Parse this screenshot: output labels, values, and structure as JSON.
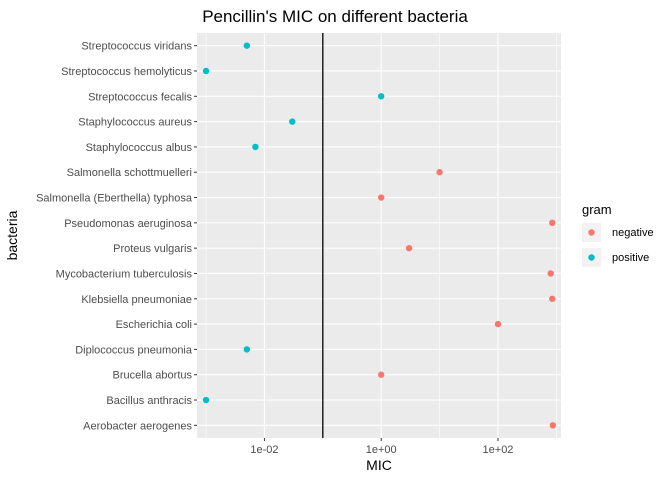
{
  "chart_data": {
    "type": "scatter",
    "title": "Pencillin's MIC on different bacteria",
    "xlabel": "MIC",
    "ylabel": "bacteria",
    "x_scale": "log10",
    "xlim": [
      0.0007,
      1200
    ],
    "x_ticks": [
      {
        "value": 0.01,
        "label": "1e-02"
      },
      {
        "value": 1,
        "label": "1e+00"
      },
      {
        "value": 100,
        "label": "1e+02"
      }
    ],
    "reference_line_x": 0.1,
    "grid": true,
    "legend": {
      "title": "gram",
      "placement": "right",
      "entries": [
        {
          "label": "negative",
          "color": "#f8766d"
        },
        {
          "label": "positive",
          "color": "#00bfc4"
        }
      ]
    },
    "categories": [
      "Aerobacter aerogenes",
      "Bacillus anthracis",
      "Brucella abortus",
      "Diplococcus pneumonia",
      "Escherichia coli",
      "Klebsiella pneumoniae",
      "Mycobacterium tuberculosis",
      "Proteus vulgaris",
      "Pseudomonas aeruginosa",
      "Salmonella (Eberthella) typhosa",
      "Salmonella schottmuelleri",
      "Staphylococcus albus",
      "Staphylococcus aureus",
      "Streptococcus fecalis",
      "Streptococcus hemolyticus",
      "Streptococcus viridans"
    ],
    "points": [
      {
        "bacteria": "Aerobacter aerogenes",
        "mic": 870,
        "gram": "negative"
      },
      {
        "bacteria": "Bacillus anthracis",
        "mic": 0.001,
        "gram": "positive"
      },
      {
        "bacteria": "Brucella abortus",
        "mic": 1,
        "gram": "negative"
      },
      {
        "bacteria": "Diplococcus pneumonia",
        "mic": 0.005,
        "gram": "positive"
      },
      {
        "bacteria": "Escherichia coli",
        "mic": 100,
        "gram": "negative"
      },
      {
        "bacteria": "Klebsiella pneumoniae",
        "mic": 850,
        "gram": "negative"
      },
      {
        "bacteria": "Mycobacterium tuberculosis",
        "mic": 800,
        "gram": "negative"
      },
      {
        "bacteria": "Proteus vulgaris",
        "mic": 3,
        "gram": "negative"
      },
      {
        "bacteria": "Pseudomonas aeruginosa",
        "mic": 850,
        "gram": "negative"
      },
      {
        "bacteria": "Salmonella (Eberthella) typhosa",
        "mic": 1,
        "gram": "negative"
      },
      {
        "bacteria": "Salmonella schottmuelleri",
        "mic": 10,
        "gram": "negative"
      },
      {
        "bacteria": "Staphylococcus albus",
        "mic": 0.007,
        "gram": "positive"
      },
      {
        "bacteria": "Staphylococcus aureus",
        "mic": 0.03,
        "gram": "positive"
      },
      {
        "bacteria": "Streptococcus fecalis",
        "mic": 1,
        "gram": "positive"
      },
      {
        "bacteria": "Streptococcus hemolyticus",
        "mic": 0.001,
        "gram": "positive"
      },
      {
        "bacteria": "Streptococcus viridans",
        "mic": 0.005,
        "gram": "positive"
      }
    ]
  }
}
